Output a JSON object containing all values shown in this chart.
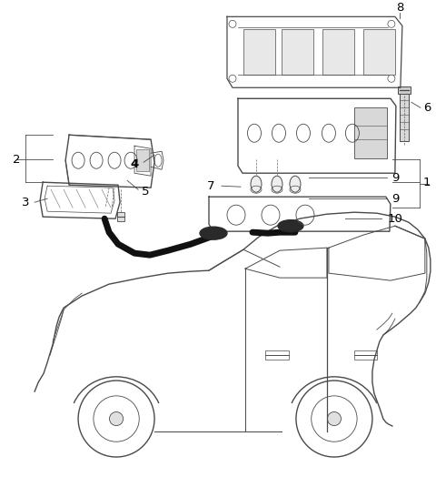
{
  "bg_color": "#ffffff",
  "line_color": "#4a4a4a",
  "label_color": "#000000",
  "figsize": [
    4.8,
    5.24
  ],
  "dpi": 100
}
